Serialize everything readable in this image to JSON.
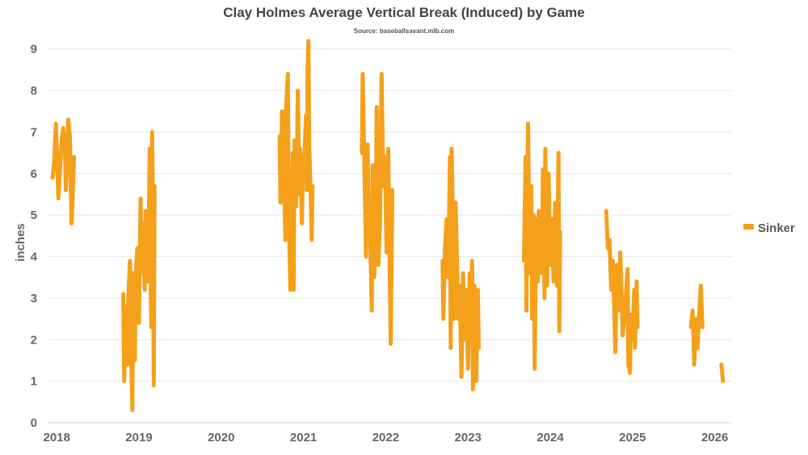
{
  "chart_data": {
    "type": "line",
    "title": "Clay Holmes Average Vertical Break (Induced) by Game",
    "subtitle": "Source: baseballsavant.mlb.com",
    "xlabel": "",
    "ylabel": "inches",
    "ylim": [
      0,
      9.5
    ],
    "yticks": [
      "0",
      "1",
      "2",
      "3",
      "4",
      "5",
      "6",
      "7",
      "8",
      "9"
    ],
    "xlim": [
      2017.9,
      2026.2
    ],
    "xticks": [
      "2018",
      "2019",
      "2020",
      "2021",
      "2022",
      "2023",
      "2024",
      "2025",
      "2026"
    ],
    "grid": "horizontal",
    "legend_position": "right",
    "colors": {
      "series": "#F5A01A",
      "grid": "#e6e6e6",
      "text": "#666666"
    },
    "series": [
      {
        "name": "Sinker",
        "segments": [
          [
            [
              2017.95,
              5.9
            ],
            [
              2017.97,
              6.3
            ],
            [
              2017.99,
              7.2
            ],
            [
              2018.01,
              6.0
            ],
            [
              2018.02,
              5.4
            ],
            [
              2018.04,
              6.1
            ],
            [
              2018.06,
              6.8
            ],
            [
              2018.08,
              7.1
            ],
            [
              2018.1,
              6.6
            ],
            [
              2018.11,
              5.6
            ],
            [
              2018.13,
              6.4
            ],
            [
              2018.14,
              7.3
            ],
            [
              2018.16,
              6.9
            ],
            [
              2018.18,
              4.8
            ],
            [
              2018.19,
              5.2
            ],
            [
              2018.21,
              6.4
            ]
          ],
          [
            [
              2018.81,
              3.1
            ],
            [
              2018.82,
              1.0
            ],
            [
              2018.84,
              2.8
            ],
            [
              2018.86,
              1.4
            ],
            [
              2018.87,
              3.0
            ],
            [
              2018.89,
              3.9
            ],
            [
              2018.91,
              1.2
            ],
            [
              2018.92,
              0.3
            ],
            [
              2018.93,
              3.6
            ],
            [
              2018.95,
              1.5
            ],
            [
              2018.96,
              3.5
            ],
            [
              2018.98,
              4.2
            ],
            [
              2019.0,
              2.4
            ],
            [
              2019.02,
              5.4
            ],
            [
              2019.03,
              3.6
            ],
            [
              2019.05,
              4.8
            ],
            [
              2019.07,
              3.2
            ],
            [
              2019.08,
              5.1
            ],
            [
              2019.1,
              3.4
            ],
            [
              2019.12,
              4.5
            ],
            [
              2019.13,
              6.6
            ],
            [
              2019.14,
              3.9
            ],
            [
              2019.15,
              2.3
            ],
            [
              2019.16,
              7.0
            ],
            [
              2019.17,
              5.1
            ],
            [
              2019.18,
              0.9
            ],
            [
              2019.19,
              5.7
            ]
          ],
          [
            [
              2020.71,
              6.9
            ],
            [
              2020.72,
              5.3
            ],
            [
              2020.74,
              7.5
            ],
            [
              2020.75,
              5.9
            ],
            [
              2020.76,
              6.2
            ],
            [
              2020.78,
              4.4
            ],
            [
              2020.79,
              7.6
            ],
            [
              2020.81,
              8.4
            ],
            [
              2020.82,
              5.1
            ],
            [
              2020.84,
              3.2
            ],
            [
              2020.85,
              4.0
            ],
            [
              2020.87,
              6.5
            ],
            [
              2020.88,
              3.2
            ],
            [
              2020.89,
              6.8
            ],
            [
              2020.91,
              5.2
            ],
            [
              2020.92,
              6.1
            ],
            [
              2020.93,
              8.0
            ],
            [
              2020.95,
              5.5
            ],
            [
              2020.96,
              6.6
            ],
            [
              2020.98,
              4.8
            ],
            [
              2020.99,
              5.9
            ],
            [
              2021.01,
              6.3
            ],
            [
              2021.03,
              7.4
            ],
            [
              2021.04,
              5.6
            ],
            [
              2021.05,
              8.5
            ],
            [
              2021.06,
              9.2
            ],
            [
              2021.07,
              6.7
            ],
            [
              2021.09,
              5.3
            ],
            [
              2021.1,
              4.4
            ],
            [
              2021.11,
              5.7
            ]
          ],
          [
            [
              2021.71,
              6.5
            ],
            [
              2021.72,
              8.4
            ],
            [
              2021.74,
              6.3
            ],
            [
              2021.76,
              4.0
            ],
            [
              2021.78,
              6.7
            ],
            [
              2021.79,
              5.0
            ],
            [
              2021.81,
              4.6
            ],
            [
              2021.83,
              2.7
            ],
            [
              2021.84,
              6.2
            ],
            [
              2021.86,
              3.5
            ],
            [
              2021.88,
              4.9
            ],
            [
              2021.89,
              7.6
            ],
            [
              2021.91,
              3.8
            ],
            [
              2021.93,
              4.8
            ],
            [
              2021.95,
              8.4
            ],
            [
              2021.97,
              5.7
            ],
            [
              2021.99,
              6.4
            ],
            [
              2022.01,
              4.1
            ],
            [
              2022.03,
              6.6
            ],
            [
              2022.05,
              3.4
            ],
            [
              2022.06,
              1.9
            ],
            [
              2022.08,
              5.6
            ]
          ],
          [
            [
              2022.69,
              3.9
            ],
            [
              2022.7,
              2.5
            ],
            [
              2022.72,
              4.2
            ],
            [
              2022.74,
              4.9
            ],
            [
              2022.76,
              3.5
            ],
            [
              2022.78,
              6.4
            ],
            [
              2022.79,
              1.8
            ],
            [
              2022.8,
              6.6
            ],
            [
              2022.82,
              4.6
            ],
            [
              2022.83,
              2.5
            ],
            [
              2022.85,
              5.3
            ],
            [
              2022.87,
              3.5
            ],
            [
              2022.88,
              2.5
            ],
            [
              2022.9,
              3.3
            ],
            [
              2022.92,
              1.1
            ],
            [
              2022.94,
              3.6
            ],
            [
              2022.96,
              2.0
            ],
            [
              2022.98,
              3.2
            ],
            [
              2023.0,
              1.3
            ],
            [
              2023.02,
              3.6
            ],
            [
              2023.03,
              2.1
            ],
            [
              2023.05,
              3.9
            ],
            [
              2023.06,
              0.8
            ],
            [
              2023.08,
              3.3
            ],
            [
              2023.1,
              1.0
            ],
            [
              2023.12,
              3.2
            ],
            [
              2023.13,
              1.8
            ]
          ],
          [
            [
              2023.68,
              3.9
            ],
            [
              2023.7,
              6.4
            ],
            [
              2023.71,
              2.7
            ],
            [
              2023.73,
              7.2
            ],
            [
              2023.75,
              3.6
            ],
            [
              2023.77,
              5.7
            ],
            [
              2023.78,
              2.5
            ],
            [
              2023.8,
              5.0
            ],
            [
              2023.81,
              1.3
            ],
            [
              2023.83,
              4.9
            ],
            [
              2023.85,
              3.4
            ],
            [
              2023.86,
              5.1
            ],
            [
              2023.88,
              4.0
            ],
            [
              2023.9,
              3.6
            ],
            [
              2023.91,
              6.1
            ],
            [
              2023.93,
              3.0
            ],
            [
              2023.94,
              6.6
            ],
            [
              2023.96,
              3.3
            ],
            [
              2023.98,
              6.0
            ],
            [
              2024.0,
              3.8
            ],
            [
              2024.02,
              4.9
            ],
            [
              2024.04,
              3.4
            ],
            [
              2024.06,
              5.3
            ],
            [
              2024.08,
              3.3
            ],
            [
              2024.1,
              6.5
            ],
            [
              2024.11,
              2.2
            ],
            [
              2024.12,
              4.6
            ]
          ],
          [
            [
              2024.68,
              5.1
            ],
            [
              2024.7,
              4.2
            ],
            [
              2024.72,
              4.4
            ],
            [
              2024.74,
              3.2
            ],
            [
              2024.76,
              3.9
            ],
            [
              2024.78,
              2.6
            ],
            [
              2024.79,
              1.7
            ],
            [
              2024.81,
              3.8
            ],
            [
              2024.83,
              2.7
            ],
            [
              2024.85,
              4.1
            ],
            [
              2024.86,
              3.6
            ],
            [
              2024.88,
              2.1
            ],
            [
              2024.9,
              2.5
            ],
            [
              2024.92,
              3.1
            ],
            [
              2024.94,
              3.7
            ],
            [
              2024.95,
              1.4
            ],
            [
              2024.97,
              1.2
            ],
            [
              2024.98,
              2.6
            ],
            [
              2025.0,
              2.0
            ],
            [
              2025.02,
              3.2
            ],
            [
              2025.03,
              1.8
            ],
            [
              2025.05,
              3.4
            ],
            [
              2025.06,
              2.3
            ]
          ],
          [
            [
              2025.71,
              2.3
            ],
            [
              2025.73,
              2.7
            ],
            [
              2025.75,
              1.4
            ],
            [
              2025.77,
              2.5
            ],
            [
              2025.79,
              1.8
            ],
            [
              2025.81,
              2.6
            ],
            [
              2025.83,
              3.3
            ],
            [
              2025.85,
              2.3
            ]
          ],
          [
            [
              2026.08,
              1.4
            ],
            [
              2026.1,
              1.0
            ]
          ]
        ]
      }
    ]
  }
}
